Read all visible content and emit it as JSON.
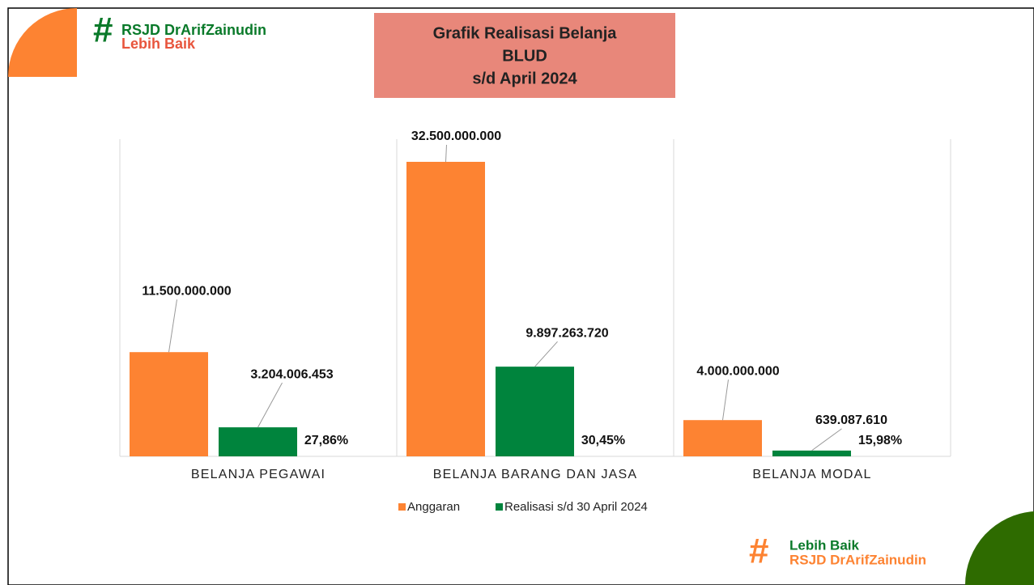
{
  "brand_top": {
    "line1": "RSJD DrArifZainudin",
    "line2": "Lebih Baik"
  },
  "brand_bottom": {
    "line1": "Lebih Baik",
    "line2": "RSJD DrArifZainudin"
  },
  "chart_data": {
    "type": "bar",
    "title_lines": [
      "Grafik Realisasi Belanja",
      "BLUD",
      "s/d April 2024"
    ],
    "categories": [
      "BELANJA PEGAWAI",
      "BELANJA BARANG DAN JASA",
      "BELANJA MODAL"
    ],
    "series": [
      {
        "name": "Anggaran",
        "color": "#fd8332",
        "values": [
          11500000000,
          32500000000,
          4000000000
        ],
        "value_labels": [
          "11.500.000.000",
          "32.500.000.000",
          "4.000.000.000"
        ]
      },
      {
        "name": "Realisasi s/d 30 April 2024",
        "color": "#00843d",
        "values": [
          3204006453,
          9897263720,
          639087610
        ],
        "value_labels": [
          "3.204.006.453",
          "9.897.263.720",
          "639.087.610"
        ]
      }
    ],
    "percent_labels": [
      "27,86%",
      "30,45%",
      "15,98%"
    ],
    "ylim": [
      0,
      35000000000
    ],
    "legend": "bottom"
  }
}
